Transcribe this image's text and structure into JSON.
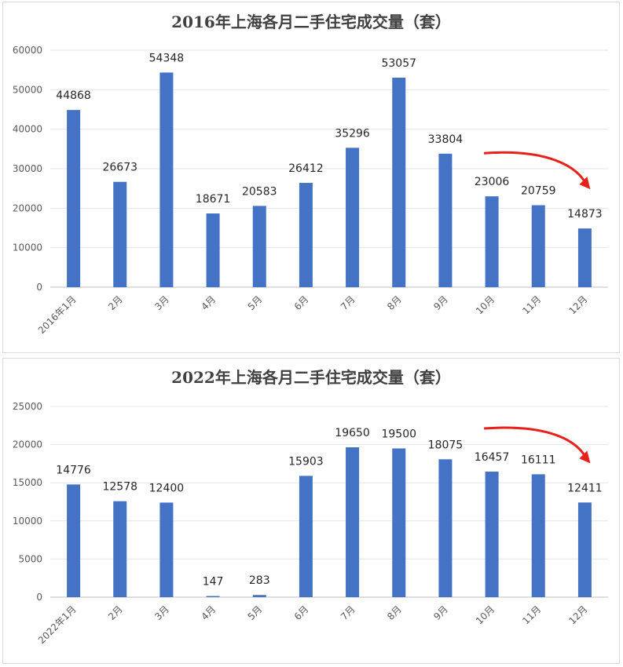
{
  "chart_data": [
    {
      "type": "bar",
      "title": "2016年上海各月二手住宅成交量（套）",
      "categories": [
        "2016年1月",
        "2月",
        "3月",
        "4月",
        "5月",
        "6月",
        "7月",
        "8月",
        "9月",
        "10月",
        "11月",
        "12月"
      ],
      "values": [
        44868,
        26673,
        54348,
        18671,
        20583,
        26412,
        35296,
        53057,
        33804,
        23006,
        20759,
        14873
      ],
      "y_ticks": [
        "0",
        "10000",
        "20000",
        "30000",
        "40000",
        "50000",
        "60000"
      ],
      "ylim": [
        0,
        60000
      ],
      "grid": true,
      "legend": "none",
      "bar_color": "#4472c4",
      "annotations": [
        {
          "type": "arrow",
          "color": "#e8201a",
          "from_category": "10月",
          "to_category": "12月",
          "direction": "downward curve"
        }
      ]
    },
    {
      "type": "bar",
      "title": "2022年上海各月二手住宅成交量（套）",
      "categories": [
        "2022年1月",
        "2月",
        "3月",
        "4月",
        "5月",
        "6月",
        "7月",
        "8月",
        "9月",
        "10月",
        "11月",
        "12月"
      ],
      "values": [
        14776,
        12578,
        12400,
        147,
        283,
        15903,
        19650,
        19500,
        18075,
        16457,
        16111,
        12411
      ],
      "y_ticks": [
        "0",
        "5000",
        "10000",
        "15000",
        "20000",
        "25000"
      ],
      "ylim": [
        0,
        25000
      ],
      "grid": true,
      "legend": "none",
      "bar_color": "#4472c4",
      "annotations": [
        {
          "type": "arrow",
          "color": "#e8201a",
          "from_category": "10月",
          "to_category": "12月",
          "direction": "downward curve"
        }
      ]
    }
  ]
}
